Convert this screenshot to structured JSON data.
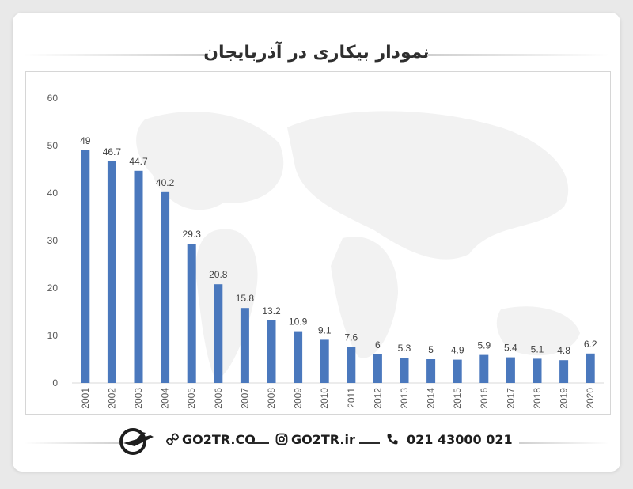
{
  "header": {
    "title": "نمودار بیکاری در آذربایجان"
  },
  "chart_data": {
    "type": "bar",
    "title": "",
    "xlabel": "",
    "ylabel": "",
    "categories": [
      "2001",
      "2002",
      "2003",
      "2004",
      "2005",
      "2006",
      "2007",
      "2008",
      "2009",
      "2010",
      "2011",
      "2012",
      "2013",
      "2014",
      "2015",
      "2016",
      "2017",
      "2018",
      "2019",
      "2020"
    ],
    "values": [
      49,
      46.7,
      44.7,
      40.2,
      29.3,
      20.8,
      15.8,
      13.2,
      10.9,
      9.1,
      7.6,
      6,
      5.3,
      5,
      4.9,
      5.9,
      5.4,
      5.1,
      4.8,
      6.2
    ],
    "value_labels": [
      "49",
      "46.7",
      "44.7",
      "40.2",
      "29.3",
      "20.8",
      "15.8",
      "13.2",
      "10.9",
      "9.1",
      "7.6",
      "6",
      "5.3",
      "5",
      "4.9",
      "5.9",
      "5.4",
      "5.1",
      "4.8",
      "6.2"
    ],
    "ylim": [
      0,
      60
    ],
    "yticks": [
      "0",
      "10",
      "20",
      "30",
      "40",
      "50",
      "60"
    ],
    "grid": false,
    "bar_color": "#4a78bd"
  },
  "footer": {
    "website": "GO2TR.CO",
    "instagram": "GO2TR.ir",
    "phone": "021 43000 021"
  },
  "colors": {
    "accent": "#4a78bd",
    "text": "#2f2f2f"
  },
  "icons": [
    "plane-logo-icon",
    "link-icon",
    "instagram-icon",
    "phone-icon"
  ]
}
